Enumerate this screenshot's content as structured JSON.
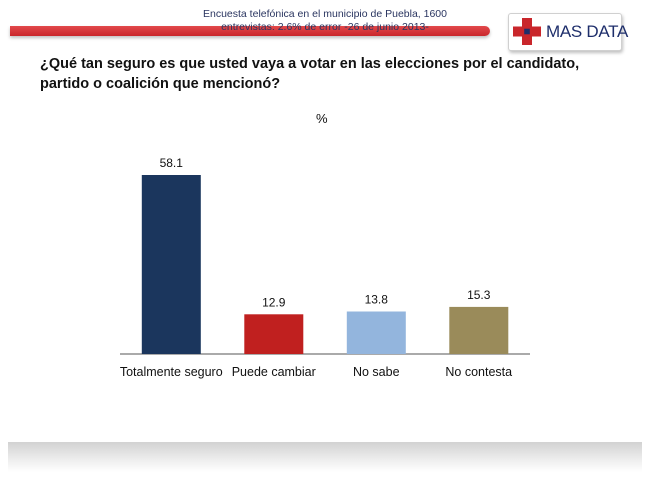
{
  "header": {
    "brand": "MAS DATA"
  },
  "question": "¿Qué tan seguro es que usted vaya a votar en las elecciones por el candidato, partido o coalición que mencionó?",
  "chart_data": {
    "type": "bar",
    "title": "%",
    "categories": [
      "Totalmente seguro",
      "Puede cambiar",
      "No sabe",
      "No contesta"
    ],
    "values": [
      58.1,
      12.9,
      13.8,
      15.3
    ],
    "value_labels": [
      "58.1",
      "12.9",
      "13.8",
      "15.3"
    ],
    "colors": [
      "#1b365d",
      "#c0201f",
      "#93b5dd",
      "#9a8b5a"
    ],
    "xlabel": "",
    "ylabel": "",
    "ylim": [
      0,
      58.1
    ],
    "grid": false,
    "legend": "none"
  },
  "footer": {
    "line1": "Encuesta telefónica en el municipio de Puebla, 1600",
    "line2": "entrevistas: 2.6% de error -26 de junio 2013-"
  }
}
